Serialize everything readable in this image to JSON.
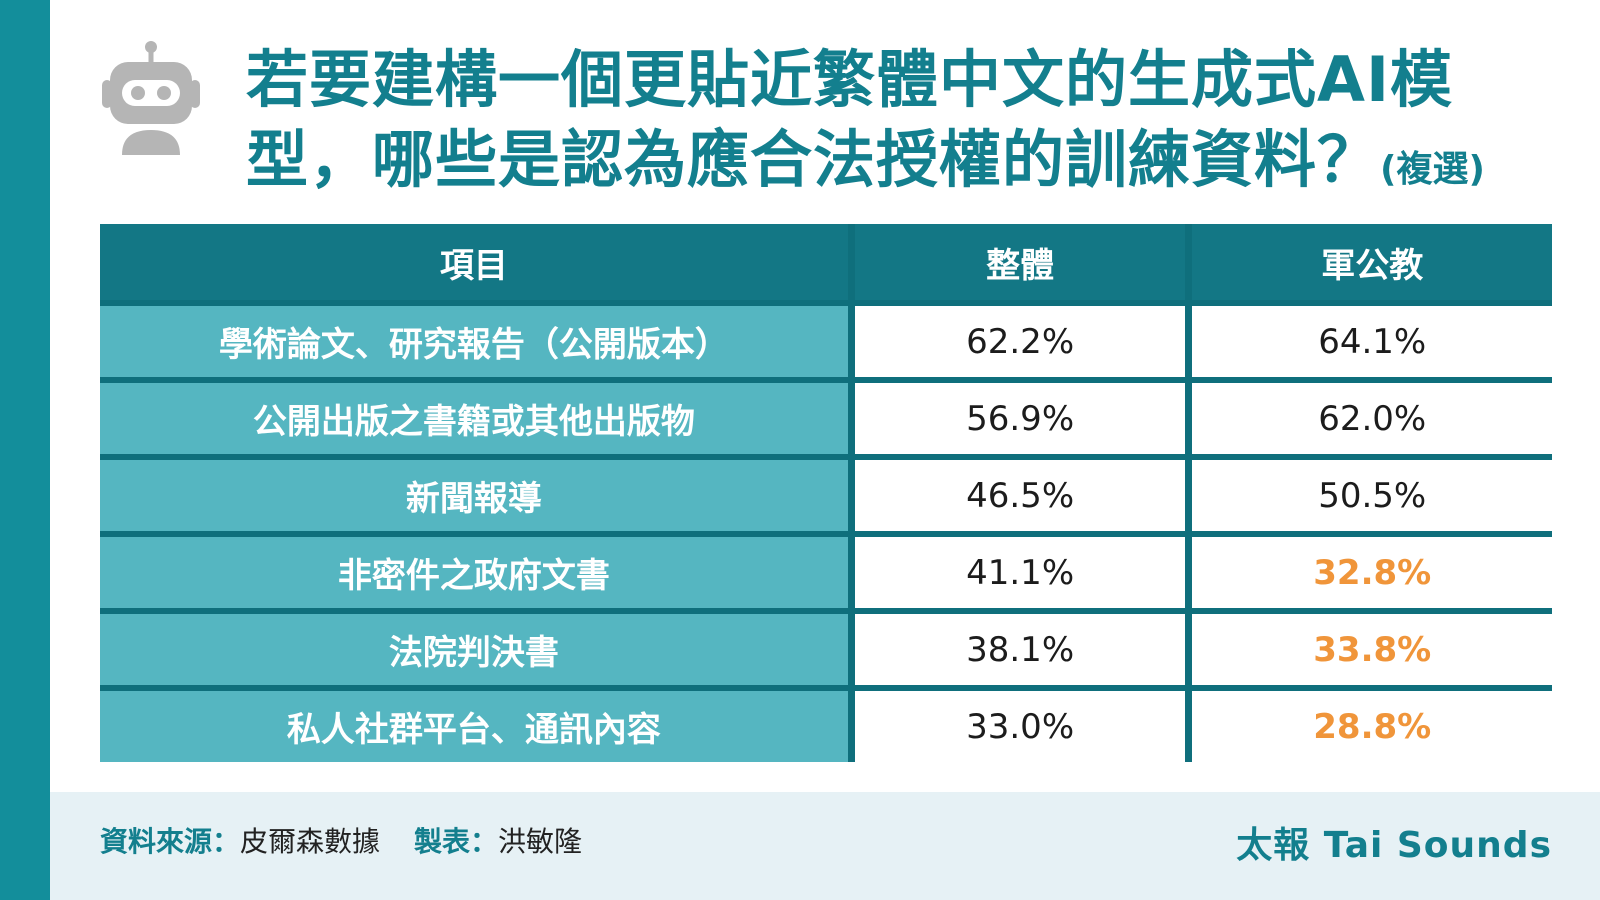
{
  "title": {
    "main": "若要建構一個更貼近繁體中文的生成式AI模型，哪些是認為應合法授權的訓練資料？",
    "note": "(複選)"
  },
  "icon": "robot-icon",
  "colors": {
    "brand_teal": "#137f8e",
    "header_bg": "#137785",
    "item_bg": "#55b6c1",
    "highlight": "#f0953a",
    "footer_bg": "#e6f1f5"
  },
  "chart_data": {
    "type": "table",
    "columns": [
      "項目",
      "整體",
      "軍公教"
    ],
    "rows": [
      {
        "item": "學術論文、研究報告（公開版本）",
        "overall": "62.2%",
        "military": "64.1%",
        "highlight": false
      },
      {
        "item": "公開出版之書籍或其他出版物",
        "overall": "56.9%",
        "military": "62.0%",
        "highlight": false
      },
      {
        "item": "新聞報導",
        "overall": "46.5%",
        "military": "50.5%",
        "highlight": false
      },
      {
        "item": "非密件之政府文書",
        "overall": "41.1%",
        "military": "32.8%",
        "highlight": true
      },
      {
        "item": "法院判決書",
        "overall": "38.1%",
        "military": "33.8%",
        "highlight": true
      },
      {
        "item": "私人社群平台、通訊內容",
        "overall": "33.0%",
        "military": "28.8%",
        "highlight": true
      }
    ]
  },
  "footer": {
    "source_label": "資料來源：",
    "source_value": "皮爾森數據",
    "maker_label": "製表：",
    "maker_value": "洪敏隆",
    "brand": "太報 Tai Sounds"
  }
}
